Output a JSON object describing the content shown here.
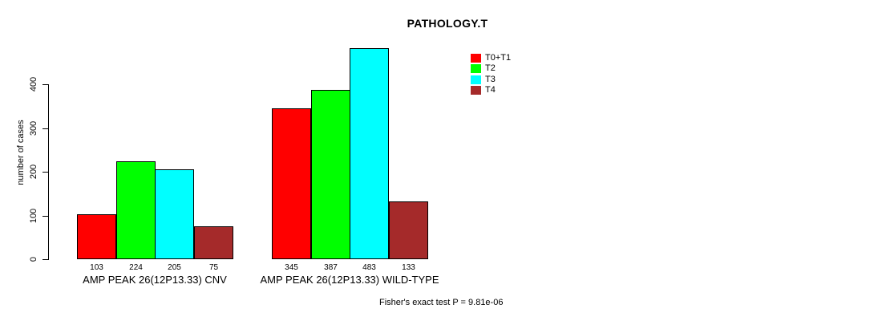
{
  "chart_data": {
    "type": "bar",
    "title": "PATHOLOGY.T",
    "ylabel": "number of cases",
    "xlabel": "",
    "yticks": [
      0,
      100,
      200,
      300,
      400
    ],
    "ylim": [
      0,
      400
    ],
    "grid": false,
    "legend_position": "top-center-right",
    "categories": [
      "AMP PEAK 26(12P13.33) CNV",
      "AMP PEAK 26(12P13.33) WILD-TYPE"
    ],
    "series": [
      {
        "name": "T0+T1",
        "color": "#FF0000",
        "values": [
          103,
          345
        ]
      },
      {
        "name": "T2",
        "color": "#00FF00",
        "values": [
          224,
          387
        ]
      },
      {
        "name": "T3",
        "color": "#00FFFF",
        "values": [
          205,
          483
        ]
      },
      {
        "name": "T4",
        "color": "#A52A2A",
        "values": [
          75,
          133
        ]
      }
    ],
    "bar_value_labels_shown": true,
    "annotation": "Fisher's exact test P = 9.81e-06",
    "colors": {
      "background": "#FFFFFF",
      "axis": "#000000",
      "text": "#000000"
    }
  }
}
